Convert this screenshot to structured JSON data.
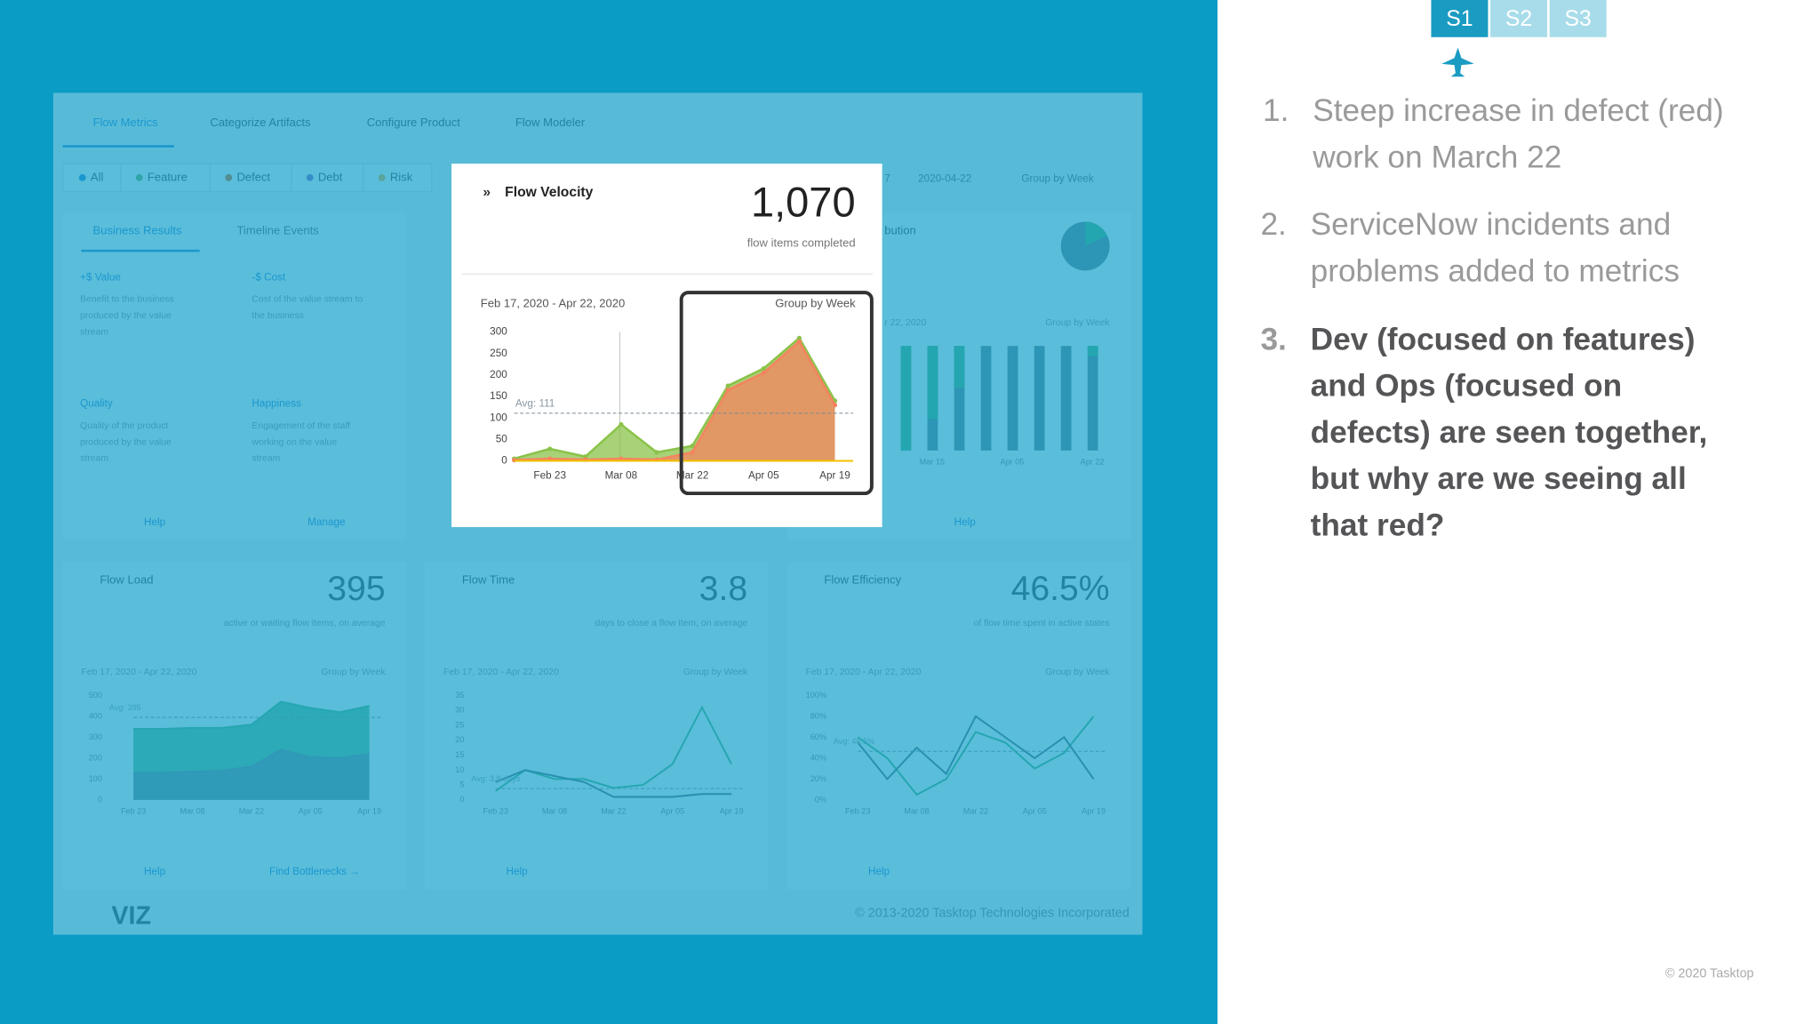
{
  "slide_tabs": [
    "S1",
    "S2",
    "S3"
  ],
  "points": [
    {
      "number": "1.",
      "lines": [
        "Steep increase in defect (red)",
        "work on March 22"
      ]
    },
    {
      "number": "2.",
      "lines": [
        "ServiceNow incidents and",
        "problems added to metrics"
      ]
    },
    {
      "number": "3.",
      "lines": [
        "Dev (focused on features)",
        "and Ops (focused on",
        "defects) are seen together,",
        "but why are we seeing all",
        "that red?"
      ]
    }
  ],
  "copyright": "© 2020 Tasktop",
  "dashboard": {
    "nav": [
      "Flow Metrics",
      "Categorize Artifacts",
      "Configure Product",
      "Flow Modeler"
    ],
    "filters": [
      "All",
      "Feature",
      "Defect",
      "Debt",
      "Risk"
    ],
    "date_start": "7",
    "date_end": "2020-04-22",
    "group_select": "Group by Week",
    "results_tabs": [
      "Business Results",
      "Timeline Events"
    ],
    "results_cards": [
      {
        "title": "+$ Value",
        "text": [
          "Benefit to the business",
          "produced by the value",
          "stream"
        ]
      },
      {
        "title": "-$ Cost",
        "text": [
          "Cost of the value stream to",
          "the business"
        ]
      },
      {
        "title": "Quality",
        "text": [
          "Quality of the product",
          "produced by the value",
          "stream"
        ]
      },
      {
        "title": "Happiness",
        "text": [
          "Engagement of the staff",
          "working on the value",
          "stream"
        ]
      }
    ],
    "results_links": [
      "Help",
      "Manage"
    ],
    "distribution": {
      "title": "bution",
      "date": "r 22, 2020",
      "group": "Group by Week",
      "categories": [
        null,
        "Mar 15",
        null,
        null,
        "Apr 05",
        null,
        null,
        "Apr 22"
      ],
      "green_share": [
        100,
        70,
        40,
        0,
        0,
        0,
        0,
        10
      ],
      "help": "Help"
    },
    "velocity": {
      "title": "Flow Velocity",
      "value": "1,070",
      "caption": "flow items completed",
      "date": "Feb 17, 2020 - Apr 22, 2020",
      "group": "Group by Week",
      "ylim": [
        0,
        300
      ],
      "yticks": [
        0,
        50,
        100,
        150,
        200,
        250,
        300
      ],
      "categories": [
        null,
        "Feb 23",
        null,
        "Mar 08",
        null,
        "Mar 22",
        null,
        "Apr 05",
        null,
        "Apr 19"
      ],
      "avg": 111,
      "avg_label": "Avg: 111",
      "series": [
        {
          "color": "#8bc34a",
          "values": [
            5,
            28,
            10,
            85,
            20,
            35,
            175,
            215,
            286,
            140
          ]
        },
        {
          "color": "#f4845f",
          "values": [
            2,
            5,
            3,
            5,
            3,
            20,
            165,
            205,
            278,
            130
          ]
        }
      ]
    },
    "load": {
      "title": "Flow Load",
      "value": "395",
      "caption": "active or waiting flow items, on average",
      "date": "Feb 17, 2020 - Apr 22, 2020",
      "group": "Group by Week",
      "ylim": [
        0,
        500
      ],
      "yticks": [
        0,
        100,
        200,
        300,
        400,
        500
      ],
      "categories": [
        "Feb 23",
        null,
        "Mar 08",
        null,
        "Mar 22",
        null,
        "Apr 05",
        null,
        "Apr 19"
      ],
      "avg": 395,
      "avg_label": "Avg: 395",
      "series": [
        {
          "color": "#3fae6a",
          "values": [
            340,
            340,
            345,
            345,
            360,
            470,
            440,
            420,
            450
          ]
        },
        {
          "color": "#6b7b86",
          "values": [
            130,
            130,
            135,
            140,
            160,
            240,
            205,
            200,
            220
          ]
        }
      ],
      "links": [
        "Help",
        "Find Bottlenecks →"
      ]
    },
    "time": {
      "title": "Flow Time",
      "value": "3.8",
      "caption": "days to close a flow item, on average",
      "date": "Feb 17, 2020 - Apr 22, 2020",
      "group": "Group by Week",
      "ylim": [
        0,
        35
      ],
      "yticks": [
        0,
        5,
        10,
        15,
        20,
        25,
        30,
        35
      ],
      "categories": [
        "Feb 23",
        null,
        "Mar 08",
        null,
        "Mar 22",
        null,
        "Apr 05",
        null,
        "Apr 19"
      ],
      "avg": 3.8,
      "avg_label": "Avg: 3.8 days",
      "series": [
        {
          "color": "#3fae6a",
          "values": [
            3,
            10,
            7,
            7,
            4,
            5,
            12,
            31,
            12
          ]
        },
        {
          "color": "#4a5a66",
          "values": [
            6,
            10,
            8,
            6,
            1,
            1,
            1,
            2,
            2
          ]
        }
      ],
      "links": [
        "Help"
      ]
    },
    "efficiency": {
      "title": "Flow Efficiency",
      "value": "46.5%",
      "caption": "of flow time spent in active states",
      "date": "Feb 17, 2020 - Apr 22, 2020",
      "group": "Group by Week",
      "ylim": [
        0,
        100
      ],
      "yticks": [
        {
          "value": 0,
          "label": "0%"
        },
        {
          "value": 20,
          "label": "20%"
        },
        {
          "value": 40,
          "label": "40%"
        },
        {
          "value": 60,
          "label": "60%"
        },
        {
          "value": 80,
          "label": "80%"
        },
        {
          "value": 100,
          "label": "100%"
        }
      ],
      "categories": [
        "Feb 23",
        null,
        "Mar 08",
        null,
        "Mar 22",
        null,
        "Apr 05",
        null,
        "Apr 19"
      ],
      "avg": 46.5,
      "avg_label": "Avg: 46.5%",
      "series": [
        {
          "color": "#3fae6a",
          "values": [
            60,
            40,
            5,
            20,
            65,
            55,
            30,
            45,
            80
          ]
        },
        {
          "color": "#4a5a66",
          "values": [
            55,
            20,
            50,
            25,
            80,
            60,
            40,
            60,
            20
          ]
        }
      ],
      "links": [
        "Help"
      ]
    },
    "logo": "VIZ",
    "footer": "© 2013-2020 Tasktop Technologies Incorporated"
  }
}
